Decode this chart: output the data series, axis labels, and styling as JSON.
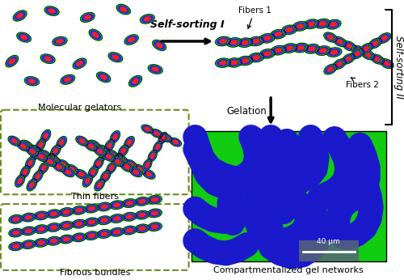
{
  "bg_color": "#ffffff",
  "dashed_box_color": "#6b8e23",
  "gelators_label": "Molecular gelators",
  "gelation_label": "Gelation",
  "fibers1_label": "Fibers 1",
  "fibers2_label": "Fibers 2",
  "thin_fibers_label": "Thin fibers",
  "fibrous_label": "Fibrous bundles",
  "gel_networks_label": "Compartmentalized gel networks",
  "self_sorting1_label": "Self-sorting I",
  "self_sorting2_label": "Self-sorting II",
  "scale_bar_label": "40 μm",
  "ellipse_outer": "#22cc22",
  "ellipse_middle": "#2222ee",
  "ellipse_inner": "#ee2222",
  "gel_blue": "#1a1acc",
  "gel_green": "#1acc1a",
  "gel_green_bg": "#11cc11"
}
